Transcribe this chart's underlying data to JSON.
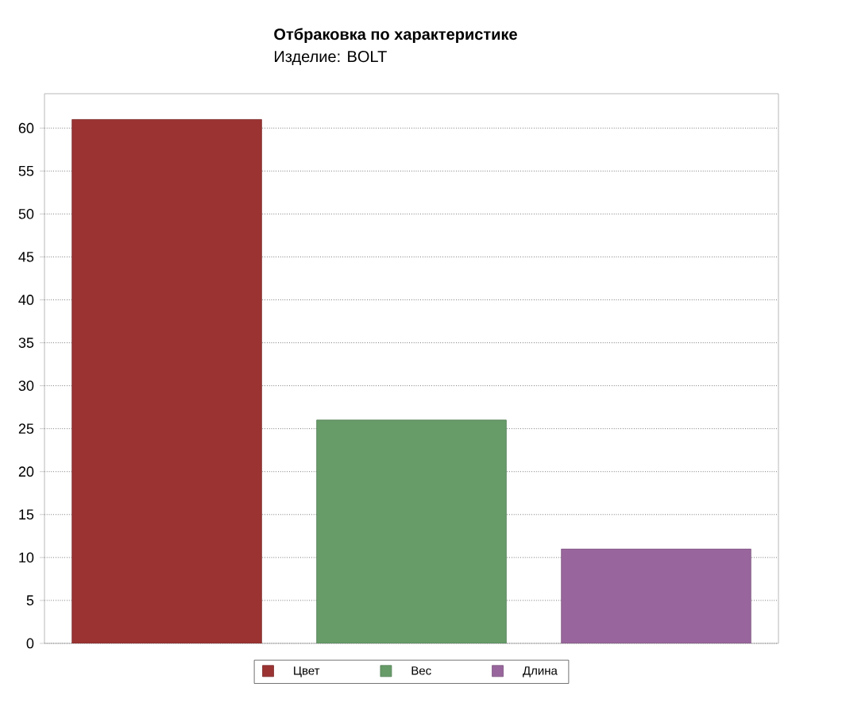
{
  "chart_data": {
    "type": "bar",
    "title": "Отбраковка по характеристике",
    "subtitle": "Изделие: BOLT",
    "categories": [
      null,
      null,
      null
    ],
    "series": [
      {
        "name": "Цвет",
        "color": "#9b3333",
        "values": [
          61,
          null,
          null
        ]
      },
      {
        "name": "Вес",
        "color": "#679c69",
        "values": [
          null,
          26,
          null
        ]
      },
      {
        "name": "Длина",
        "color": "#98669c",
        "values": [
          null,
          null,
          11
        ]
      }
    ],
    "ylim": [
      0,
      64
    ],
    "yticks": [
      0,
      5,
      10,
      15,
      20,
      25,
      30,
      35,
      40,
      45,
      50,
      55,
      60
    ],
    "grid": "y",
    "legend": "bottom"
  }
}
